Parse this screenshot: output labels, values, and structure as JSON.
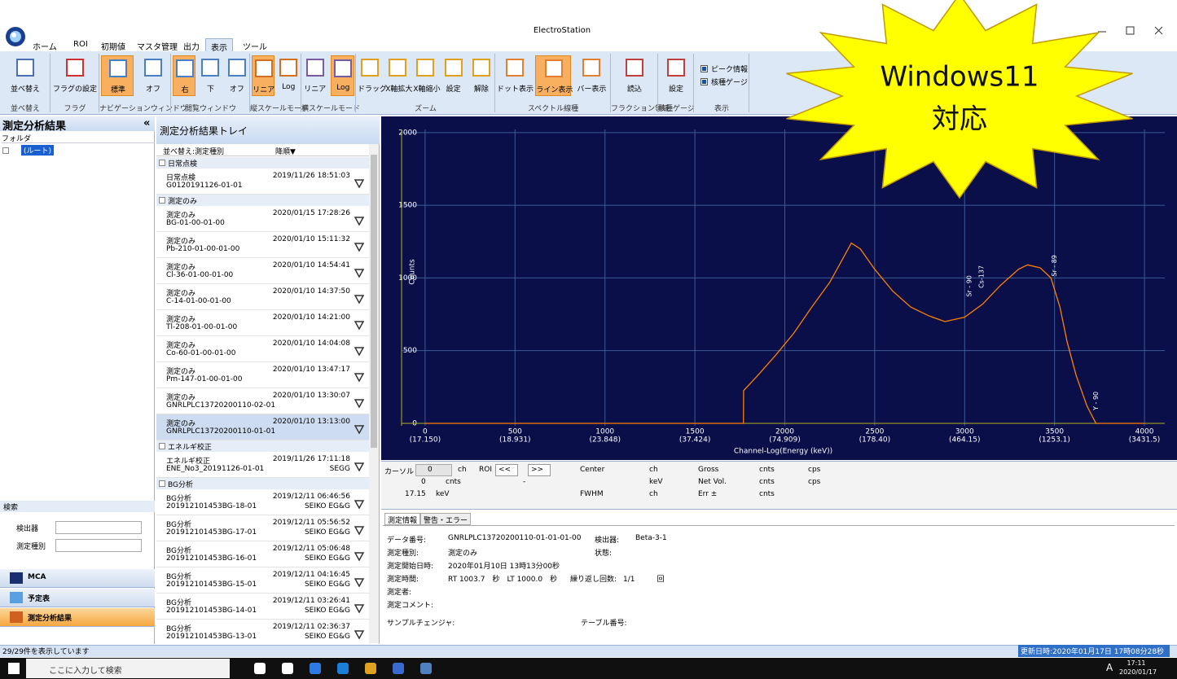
{
  "window": {
    "title": "ElectroStation"
  },
  "menu": {
    "tabs": [
      "ホーム",
      "ROI",
      "初期値",
      "マスタ管理",
      "出力",
      "表示",
      "ツール"
    ],
    "active": 5
  },
  "ribbon": [
    {
      "label": "並べ替え",
      "buttons": [
        {
          "text": "並べ替え"
        }
      ]
    },
    {
      "label": "フラグ",
      "buttons": [
        {
          "text": "フラグの設定"
        }
      ]
    },
    {
      "label": "ナビゲーションウィンドウ",
      "buttons": [
        {
          "text": "標準",
          "active": true
        },
        {
          "text": "オフ"
        }
      ]
    },
    {
      "label": "閲覧ウィンドウ",
      "buttons": [
        {
          "text": "右",
          "active": true
        },
        {
          "text": "下"
        },
        {
          "text": "オフ"
        }
      ]
    },
    {
      "label": "縦スケールモード",
      "buttons": [
        {
          "text": "リニア",
          "active": true
        },
        {
          "text": "Log"
        }
      ]
    },
    {
      "label": "横スケールモード",
      "buttons": [
        {
          "text": "リニア"
        },
        {
          "text": "Log",
          "active": true
        }
      ]
    },
    {
      "label": "ズーム",
      "buttons": [
        {
          "text": "ドラッグ"
        },
        {
          "text": "X軸拡大"
        },
        {
          "text": "X軸縮小"
        },
        {
          "text": "設定"
        },
        {
          "text": "解除"
        }
      ]
    },
    {
      "label": "スペクトル線種",
      "buttons": [
        {
          "text": "ドット表示"
        },
        {
          "text": "ライン表示",
          "active": true
        },
        {
          "text": "バー表示"
        }
      ]
    },
    {
      "label": "フラクション領域",
      "buttons": [
        {
          "text": "読込"
        }
      ]
    },
    {
      "label": "核種ゲージ",
      "buttons": [
        {
          "text": "設定"
        }
      ]
    },
    {
      "label": "表示",
      "checks": [
        {
          "text": "ピーク情報",
          "checked": true
        },
        {
          "text": "核種ゲージ",
          "checked": true
        }
      ]
    }
  ],
  "left_panel": {
    "title": "測定分析結果",
    "collapse": "«",
    "folder": "フォルダ",
    "root": "(ルート)",
    "search": "検索",
    "fields": [
      "検出器",
      "測定種別"
    ],
    "nav": [
      "MCA",
      "予定表",
      "測定分析結果"
    ],
    "nav_active": 2
  },
  "tray": {
    "title": "測定分析結果トレイ",
    "sort": "並べ替え:測定種別",
    "order": "降順▼",
    "selected": [
      1,
      8
    ],
    "groups": [
      {
        "name": "日常点検",
        "items": [
          {
            "type": "日常点検",
            "id": "G0120191126-01-01",
            "date": "2019/11/26 18:51:03"
          }
        ]
      },
      {
        "name": "測定のみ",
        "items": [
          {
            "type": "測定のみ",
            "id": "BG-01-00-01-00",
            "date": "2020/01/15 17:28:26"
          },
          {
            "type": "測定のみ",
            "id": "Pb-210-01-00-01-00",
            "date": "2020/01/10 15:11:32"
          },
          {
            "type": "測定のみ",
            "id": "Cl-36-01-00-01-00",
            "date": "2020/01/10 14:54:41"
          },
          {
            "type": "測定のみ",
            "id": "C-14-01-00-01-00",
            "date": "2020/01/10 14:37:50"
          },
          {
            "type": "測定のみ",
            "id": "Tl-208-01-00-01-00",
            "date": "2020/01/10 14:21:00"
          },
          {
            "type": "測定のみ",
            "id": "Co-60-01-00-01-00",
            "date": "2020/01/10 14:04:08"
          },
          {
            "type": "測定のみ",
            "id": "Pm-147-01-00-01-00",
            "date": "2020/01/10 13:47:17"
          },
          {
            "type": "測定のみ",
            "id": "GNRLPLC13720200110-02-01",
            "date": "2020/01/10 13:30:07"
          },
          {
            "type": "測定のみ",
            "id": "GNRLPLC13720200110-01-01",
            "date": "2020/01/10 13:13:00"
          }
        ]
      },
      {
        "name": "エネルギ校正",
        "items": [
          {
            "type": "エネルギ校正",
            "id": "ENE_No3_20191126-01-01",
            "date": "2019/11/26 17:11:18",
            "vendor": "SEGG"
          }
        ]
      },
      {
        "name": "BG分析",
        "items": [
          {
            "type": "BG分析",
            "id": "201912101453BG-18-01",
            "date": "2019/12/11 06:46:56",
            "vendor": "SEIKO EG&G"
          },
          {
            "type": "BG分析",
            "id": "201912101453BG-17-01",
            "date": "2019/12/11 05:56:52",
            "vendor": "SEIKO EG&G"
          },
          {
            "type": "BG分析",
            "id": "201912101453BG-16-01",
            "date": "2019/12/11 05:06:48",
            "vendor": "SEIKO EG&G"
          },
          {
            "type": "BG分析",
            "id": "201912101453BG-15-01",
            "date": "2019/12/11 04:16:45",
            "vendor": "SEIKO EG&G"
          },
          {
            "type": "BG分析",
            "id": "201912101453BG-14-01",
            "date": "2019/12/11 03:26:41",
            "vendor": "SEIKO EG&G"
          },
          {
            "type": "BG分析",
            "id": "201912101453BG-13-01",
            "date": "2019/12/11 02:36:37",
            "vendor": "SEIKO EG&G"
          }
        ]
      }
    ]
  },
  "chart_data": {
    "type": "line",
    "y_label": "Counts",
    "x_label": "Channel-Log(Energy (keV))",
    "xlim": [
      -131,
      4113
    ],
    "ylim": [
      -17,
      2100
    ],
    "xticks": [
      0,
      500,
      1000,
      1500,
      2000,
      2500,
      3000,
      3500,
      4000
    ],
    "x_energy_labels": [
      "(17.150)",
      "(18.931)",
      "(23.848)",
      "(37.424)",
      "(74.909)",
      "(178.40)",
      "(464.15)",
      "(1253.1)",
      "(3431.5)"
    ],
    "yticks": [
      0,
      500,
      1000,
      1500,
      2000
    ],
    "grid": true,
    "x": [
      0,
      1770,
      1771,
      1850,
      1950,
      2050,
      2150,
      2250,
      2330,
      2370,
      2420,
      2500,
      2600,
      2700,
      2800,
      2890,
      3000,
      3100,
      3200,
      3300,
      3350,
      3420,
      3480,
      3530,
      3570,
      3620,
      3680,
      3730,
      4000
    ],
    "series": [
      {
        "color": "#ff8000",
        "values": [
          0,
          0,
          225,
          330,
          470,
          620,
          800,
          970,
          1150,
          1240,
          1200,
          1060,
          910,
          800,
          740,
          700,
          730,
          820,
          950,
          1060,
          1090,
          1070,
          1000,
          800,
          560,
          330,
          120,
          0,
          0
        ]
      }
    ],
    "annotations": [
      {
        "text": "Sr - 90",
        "x": 3025,
        "y": 870
      },
      {
        "text": "Cs-137",
        "x": 3095,
        "y": 930
      },
      {
        "text": "Sr - 89",
        "x": 3500,
        "y": 1010
      },
      {
        "text": "Y - 90",
        "x": 3730,
        "y": 90
      }
    ]
  },
  "cursor": {
    "rows": [
      [
        "カーソル",
        "0",
        "ch",
        "ROI",
        "<<",
        ">>",
        "Center",
        "ch",
        "Gross",
        "cnts",
        "cps"
      ],
      [
        "0",
        "cnts",
        "-",
        "keV",
        "Net Vol.",
        "cnts",
        "cps"
      ],
      [
        "17.15",
        "keV",
        "FWHM",
        "ch",
        "Err ±",
        "cnts"
      ]
    ]
  },
  "info": {
    "tabs": [
      "測定情報",
      "警告・エラー"
    ],
    "fields": [
      {
        "label": "データ番号:",
        "value": "GNRLPLC13720200110-01-01-01-00"
      },
      {
        "label": "検出器:",
        "value": "Beta-3-1"
      },
      {
        "label": "測定種別:",
        "value": "測定のみ"
      },
      {
        "label": "状態:"
      },
      {
        "label": "測定開始日時:",
        "value": "2020年01月10日 13時13分00秒"
      },
      {
        "label": "測定時間:",
        "value": "RT 1003.7　秒　LT 1000.0　秒"
      },
      {
        "label": "繰り返し回数:",
        "value": "1/1　　　回"
      },
      {
        "label": "測定者:"
      },
      {
        "label": "測定コメント:"
      },
      {
        "label": "サンプルチェンジャ:"
      },
      {
        "label": "テーブル番号:"
      }
    ]
  },
  "status": {
    "left": "29/29件を表示しています",
    "right": "更新日時:2020年01月17日 17時08分28秒"
  },
  "taskbar": {
    "search": "ここに入力して検索",
    "ime": "A",
    "time": "17:11",
    "date": "2020/01/17"
  },
  "badge": {
    "lines": [
      "Windows11",
      "対応"
    ]
  }
}
